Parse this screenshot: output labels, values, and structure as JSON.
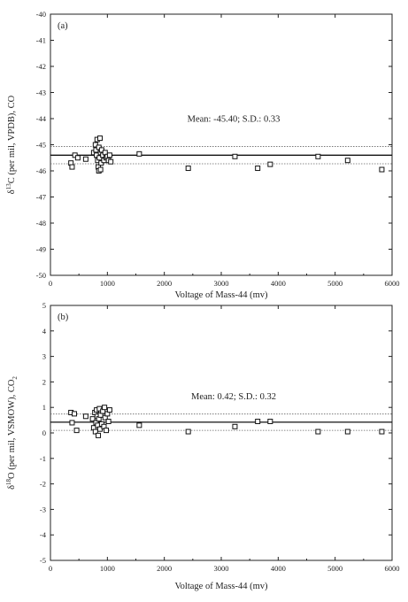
{
  "chart_data": [
    {
      "type": "scatter",
      "panel_label": "(a)",
      "xlabel": "Voltage of Mass-44 (mv)",
      "ylabel_parts": {
        "delta": "δ",
        "sup": "13",
        "rest": "C (per mil, VPDB), CO"
      },
      "xlim": [
        0,
        6000
      ],
      "ylim": [
        -50,
        -40
      ],
      "xticks": [
        0,
        1000,
        2000,
        3000,
        4000,
        5000,
        6000
      ],
      "yticks": [
        -50,
        -49,
        -48,
        -47,
        -46,
        -45,
        -44,
        -43,
        -42,
        -41,
        -40
      ],
      "annotation": "Mean: -45.40; S.D.: 0.33",
      "mean": -45.4,
      "sd_lines": [
        -45.07,
        -45.73
      ],
      "grid": false,
      "marker": "open-square",
      "points": [
        [
          360,
          -45.7
        ],
        [
          380,
          -45.85
        ],
        [
          430,
          -45.4
        ],
        [
          480,
          -45.5
        ],
        [
          620,
          -45.55
        ],
        [
          760,
          -45.3
        ],
        [
          790,
          -45.0
        ],
        [
          800,
          -45.2
        ],
        [
          810,
          -45.4
        ],
        [
          820,
          -44.8
        ],
        [
          830,
          -45.6
        ],
        [
          840,
          -45.85
        ],
        [
          850,
          -45.1
        ],
        [
          860,
          -45.5
        ],
        [
          870,
          -44.75
        ],
        [
          880,
          -45.3
        ],
        [
          890,
          -45.7
        ],
        [
          900,
          -45.2
        ],
        [
          920,
          -45.4
        ],
        [
          940,
          -45.6
        ],
        [
          960,
          -45.3
        ],
        [
          980,
          -45.5
        ],
        [
          1000,
          -45.45
        ],
        [
          1020,
          -45.6
        ],
        [
          1040,
          -45.4
        ],
        [
          1060,
          -45.65
        ],
        [
          850,
          -46.0
        ],
        [
          880,
          -45.95
        ],
        [
          1560,
          -45.35
        ],
        [
          2420,
          -45.9
        ],
        [
          3240,
          -45.45
        ],
        [
          3640,
          -45.9
        ],
        [
          3860,
          -45.75
        ],
        [
          4700,
          -45.45
        ],
        [
          5220,
          -45.6
        ],
        [
          5820,
          -45.95
        ]
      ]
    },
    {
      "type": "scatter",
      "panel_label": "(b)",
      "xlabel": "Voltage of Mass-44 (mv)",
      "ylabel_parts": {
        "delta": "δ",
        "sup": "18",
        "rest": "O (per mil, VSMOW), CO",
        "sub": "2"
      },
      "xlim": [
        0,
        6000
      ],
      "ylim": [
        -5,
        5
      ],
      "xticks": [
        0,
        1000,
        2000,
        3000,
        4000,
        5000,
        6000
      ],
      "yticks": [
        -5,
        -4,
        -3,
        -2,
        -1,
        0,
        1,
        2,
        3,
        4,
        5
      ],
      "annotation": "Mean: 0.42; S.D.: 0.32",
      "mean": 0.42,
      "sd_lines": [
        0.74,
        0.1
      ],
      "grid": false,
      "marker": "open-square",
      "points": [
        [
          360,
          0.8
        ],
        [
          380,
          0.4
        ],
        [
          420,
          0.75
        ],
        [
          460,
          0.1
        ],
        [
          620,
          0.65
        ],
        [
          740,
          0.55
        ],
        [
          760,
          0.2
        ],
        [
          780,
          0.8
        ],
        [
          790,
          0.05
        ],
        [
          800,
          0.4
        ],
        [
          810,
          0.9
        ],
        [
          820,
          0.65
        ],
        [
          830,
          0.3
        ],
        [
          840,
          -0.1
        ],
        [
          850,
          0.55
        ],
        [
          860,
          0.95
        ],
        [
          870,
          0.15
        ],
        [
          880,
          0.7
        ],
        [
          900,
          0.35
        ],
        [
          920,
          0.85
        ],
        [
          940,
          0.25
        ],
        [
          960,
          0.6
        ],
        [
          980,
          0.1
        ],
        [
          1000,
          0.75
        ],
        [
          1020,
          0.45
        ],
        [
          1040,
          0.9
        ],
        [
          950,
          1.0
        ],
        [
          1560,
          0.3
        ],
        [
          2420,
          0.05
        ],
        [
          3240,
          0.25
        ],
        [
          3640,
          0.45
        ],
        [
          3860,
          0.45
        ],
        [
          4700,
          0.05
        ],
        [
          5220,
          0.05
        ],
        [
          5820,
          0.05
        ]
      ]
    }
  ]
}
